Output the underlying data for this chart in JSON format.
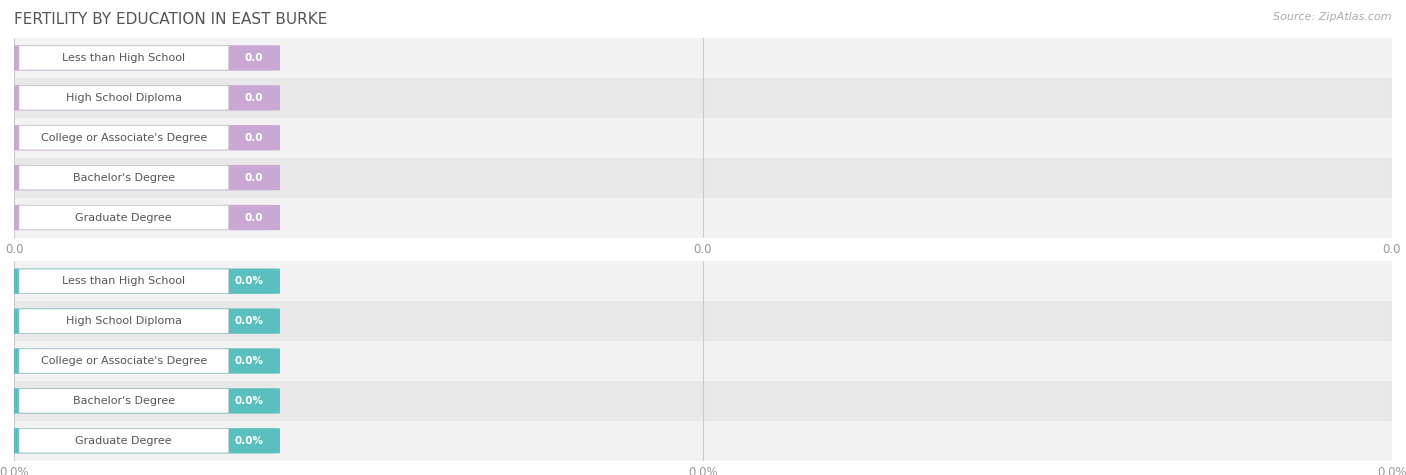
{
  "title": "FERTILITY BY EDUCATION IN EAST BURKE",
  "source": "Source: ZipAtlas.com",
  "categories": [
    "Less than High School",
    "High School Diploma",
    "College or Associate's Degree",
    "Bachelor's Degree",
    "Graduate Degree"
  ],
  "values_top": [
    0.0,
    0.0,
    0.0,
    0.0,
    0.0
  ],
  "values_bottom": [
    0.0,
    0.0,
    0.0,
    0.0,
    0.0
  ],
  "bar_color_top": "#c9a8d4",
  "bar_color_bottom": "#5bbfc0",
  "bg_color": "#ffffff",
  "row_even_color": "#f2f2f2",
  "row_odd_color": "#e8e8e8",
  "title_color": "#555555",
  "source_color": "#aaaaaa",
  "label_text_color": "#555555",
  "value_text_color": "#ffffff",
  "tick_label_color": "#999999",
  "grid_color": "#cccccc",
  "label_box_color": "#ffffff",
  "label_box_edge_color": "#cccccc",
  "xtick_labels_top": [
    "0.0",
    "0.0",
    "0.0"
  ],
  "xtick_labels_bottom": [
    "0.0%",
    "0.0%",
    "0.0%"
  ],
  "title_fontsize": 11,
  "source_fontsize": 8,
  "label_fontsize": 8,
  "value_fontsize": 7.5,
  "tick_fontsize": 8.5
}
